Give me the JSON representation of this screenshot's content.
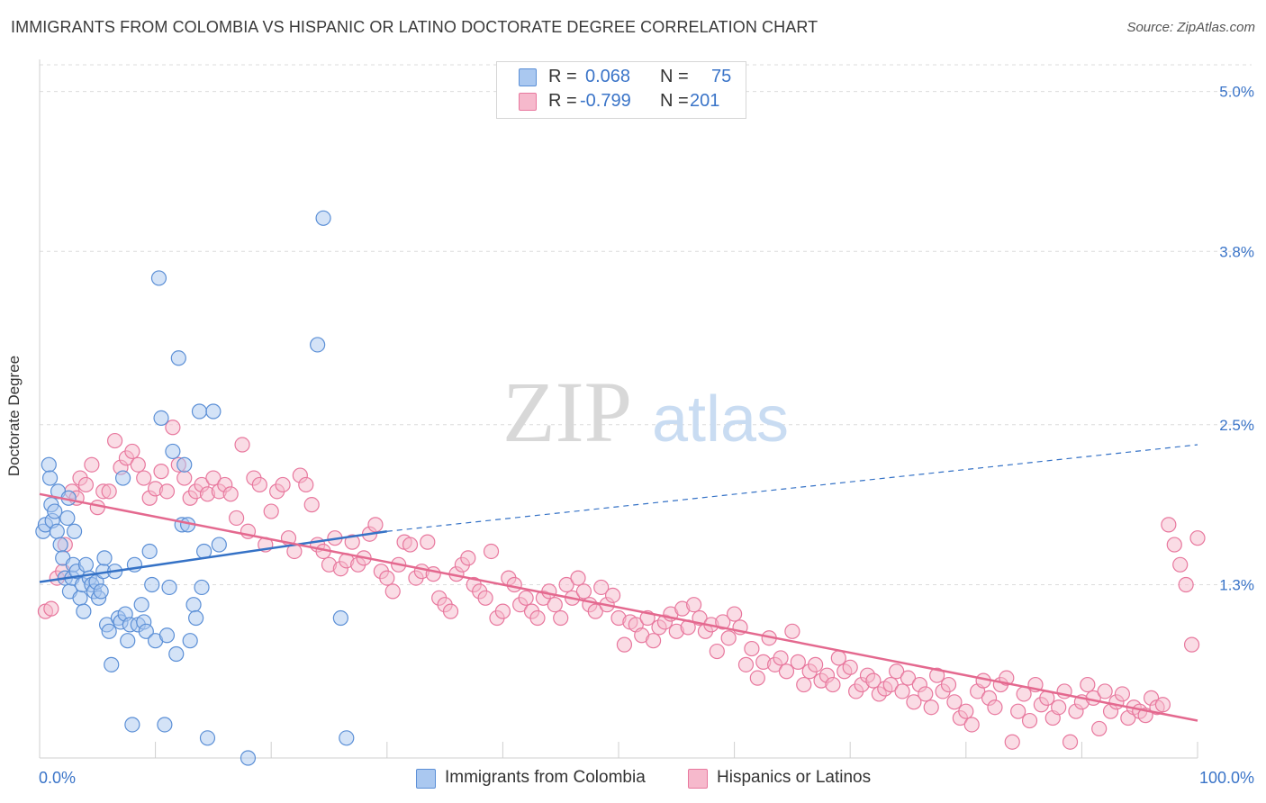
{
  "title": "IMMIGRANTS FROM COLOMBIA VS HISPANIC OR LATINO DOCTORATE DEGREE CORRELATION CHART",
  "source": "Source: ZipAtlas.com",
  "watermark": {
    "zip": "ZIP",
    "atlas": "atlas"
  },
  "legend": {
    "r_label": "R =",
    "n_label": "N =",
    "series1": {
      "r": "0.068",
      "n": "75"
    },
    "series2": {
      "r": "-0.799",
      "n": "201"
    }
  },
  "bottom_legend": {
    "series1": "Immigrants from Colombia",
    "series2": "Hispanics or Latinos"
  },
  "colors": {
    "blue_fill": "#aac8f0",
    "blue_stroke": "#5b8fd6",
    "blue_line": "#3572c6",
    "pink_fill": "#f6b9cc",
    "pink_stroke": "#e8789e",
    "pink_line": "#e4698f",
    "tick_text": "#3a74c8"
  },
  "chart_data": {
    "type": "scatter",
    "title": "IMMIGRANTS FROM COLOMBIA VS HISPANIC OR LATINO DOCTORATE DEGREE CORRELATION CHART",
    "xlabel": "",
    "ylabel": "Doctorate Degree",
    "xlim": [
      0,
      100
    ],
    "ylim": [
      0,
      5.2
    ],
    "x_tick_labels": [
      "0.0%",
      "100.0%"
    ],
    "y_ticks": [
      1.3,
      2.5,
      3.8,
      5.0
    ],
    "y_tick_labels": [
      "1.3%",
      "2.5%",
      "3.8%",
      "5.0%"
    ],
    "series": [
      {
        "name": "Immigrants from Colombia",
        "r": 0.068,
        "n": 75,
        "trend": {
          "x0": 0,
          "y0": 1.32,
          "x1": 30,
          "y1": 1.7,
          "dashed_to_x": 100,
          "dashed_to_y": 2.35
        },
        "points": [
          [
            0.3,
            1.7
          ],
          [
            0.5,
            1.75
          ],
          [
            0.8,
            2.2
          ],
          [
            0.9,
            2.1
          ],
          [
            1.0,
            1.9
          ],
          [
            1.1,
            1.78
          ],
          [
            1.3,
            1.85
          ],
          [
            1.5,
            1.7
          ],
          [
            1.6,
            2.0
          ],
          [
            1.8,
            1.6
          ],
          [
            2.0,
            1.5
          ],
          [
            2.2,
            1.35
          ],
          [
            2.4,
            1.8
          ],
          [
            2.5,
            1.95
          ],
          [
            2.6,
            1.25
          ],
          [
            2.8,
            1.35
          ],
          [
            2.9,
            1.45
          ],
          [
            3.0,
            1.7
          ],
          [
            3.2,
            1.4
          ],
          [
            3.5,
            1.2
          ],
          [
            3.7,
            1.3
          ],
          [
            3.8,
            1.1
          ],
          [
            4.0,
            1.45
          ],
          [
            4.3,
            1.35
          ],
          [
            4.5,
            1.3
          ],
          [
            4.7,
            1.25
          ],
          [
            4.9,
            1.32
          ],
          [
            5.1,
            1.2
          ],
          [
            5.3,
            1.25
          ],
          [
            5.5,
            1.4
          ],
          [
            5.6,
            1.5
          ],
          [
            5.8,
            1.0
          ],
          [
            6.0,
            0.95
          ],
          [
            6.2,
            0.7
          ],
          [
            6.5,
            1.4
          ],
          [
            6.8,
            1.05
          ],
          [
            7.0,
            1.02
          ],
          [
            7.2,
            2.1
          ],
          [
            7.4,
            1.08
          ],
          [
            7.6,
            0.88
          ],
          [
            7.8,
            1.0
          ],
          [
            8.0,
            0.25
          ],
          [
            8.2,
            1.45
          ],
          [
            8.5,
            1.0
          ],
          [
            8.8,
            1.15
          ],
          [
            9.0,
            1.02
          ],
          [
            9.2,
            0.95
          ],
          [
            9.5,
            1.55
          ],
          [
            9.7,
            1.3
          ],
          [
            10.0,
            0.88
          ],
          [
            10.3,
            3.6
          ],
          [
            10.5,
            2.55
          ],
          [
            10.8,
            0.25
          ],
          [
            11.0,
            0.92
          ],
          [
            11.2,
            1.28
          ],
          [
            11.5,
            2.3
          ],
          [
            11.8,
            0.78
          ],
          [
            12.0,
            3.0
          ],
          [
            12.3,
            1.75
          ],
          [
            12.5,
            2.2
          ],
          [
            12.8,
            1.75
          ],
          [
            13.0,
            0.88
          ],
          [
            13.3,
            1.15
          ],
          [
            13.5,
            1.05
          ],
          [
            13.8,
            2.6
          ],
          [
            14.0,
            1.28
          ],
          [
            14.2,
            1.55
          ],
          [
            14.5,
            0.15
          ],
          [
            15.0,
            2.6
          ],
          [
            15.5,
            1.6
          ],
          [
            18.0,
            0.0
          ],
          [
            24.0,
            3.1
          ],
          [
            24.5,
            4.05
          ],
          [
            26.0,
            1.05
          ],
          [
            26.5,
            0.15
          ]
        ]
      },
      {
        "name": "Hispanics or Latinos",
        "r": -0.799,
        "n": 201,
        "trend": {
          "x0": 0,
          "y0": 1.98,
          "x1": 100,
          "y1": 0.28
        },
        "points": [
          [
            0.5,
            1.1
          ],
          [
            1.0,
            1.12
          ],
          [
            1.5,
            1.35
          ],
          [
            2.0,
            1.4
          ],
          [
            2.2,
            1.6
          ],
          [
            2.8,
            2.0
          ],
          [
            3.2,
            1.95
          ],
          [
            3.5,
            2.1
          ],
          [
            4.0,
            2.05
          ],
          [
            4.5,
            2.2
          ],
          [
            5.0,
            1.88
          ],
          [
            5.5,
            2.0
          ],
          [
            6.0,
            2.0
          ],
          [
            6.5,
            2.38
          ],
          [
            7.0,
            2.18
          ],
          [
            7.5,
            2.25
          ],
          [
            8.0,
            2.3
          ],
          [
            8.5,
            2.2
          ],
          [
            9.0,
            2.1
          ],
          [
            9.5,
            1.95
          ],
          [
            10.0,
            2.02
          ],
          [
            10.5,
            2.15
          ],
          [
            11.0,
            2.0
          ],
          [
            11.5,
            2.48
          ],
          [
            12.0,
            2.2
          ],
          [
            12.5,
            2.1
          ],
          [
            13.0,
            1.95
          ],
          [
            13.5,
            2.0
          ],
          [
            14.0,
            2.05
          ],
          [
            14.5,
            1.98
          ],
          [
            15.0,
            2.1
          ],
          [
            15.5,
            2.0
          ],
          [
            16.0,
            2.05
          ],
          [
            16.5,
            1.98
          ],
          [
            17.0,
            1.8
          ],
          [
            17.5,
            2.35
          ],
          [
            18.0,
            1.7
          ],
          [
            18.5,
            2.1
          ],
          [
            19.0,
            2.05
          ],
          [
            19.5,
            1.6
          ],
          [
            20.0,
            1.85
          ],
          [
            20.5,
            2.0
          ],
          [
            21.0,
            2.05
          ],
          [
            21.5,
            1.65
          ],
          [
            22.0,
            1.55
          ],
          [
            22.5,
            2.12
          ],
          [
            23.0,
            2.05
          ],
          [
            23.5,
            1.9
          ],
          [
            24.0,
            1.6
          ],
          [
            24.5,
            1.55
          ],
          [
            25.0,
            1.45
          ],
          [
            25.5,
            1.65
          ],
          [
            26.0,
            1.42
          ],
          [
            26.5,
            1.48
          ],
          [
            27.0,
            1.62
          ],
          [
            27.5,
            1.45
          ],
          [
            28.0,
            1.5
          ],
          [
            28.5,
            1.68
          ],
          [
            29.0,
            1.75
          ],
          [
            29.5,
            1.4
          ],
          [
            30.0,
            1.35
          ],
          [
            30.5,
            1.25
          ],
          [
            31.0,
            1.45
          ],
          [
            31.5,
            1.62
          ],
          [
            32.0,
            1.6
          ],
          [
            32.5,
            1.35
          ],
          [
            33.0,
            1.4
          ],
          [
            33.5,
            1.62
          ],
          [
            34.0,
            1.38
          ],
          [
            34.5,
            1.2
          ],
          [
            35.0,
            1.15
          ],
          [
            35.5,
            1.1
          ],
          [
            36.0,
            1.38
          ],
          [
            36.5,
            1.45
          ],
          [
            37.0,
            1.5
          ],
          [
            37.5,
            1.3
          ],
          [
            38.0,
            1.25
          ],
          [
            38.5,
            1.2
          ],
          [
            39.0,
            1.55
          ],
          [
            39.5,
            1.05
          ],
          [
            40.0,
            1.1
          ],
          [
            40.5,
            1.35
          ],
          [
            41.0,
            1.3
          ],
          [
            41.5,
            1.15
          ],
          [
            42.0,
            1.2
          ],
          [
            42.5,
            1.1
          ],
          [
            43.0,
            1.05
          ],
          [
            43.5,
            1.2
          ],
          [
            44.0,
            1.25
          ],
          [
            44.5,
            1.15
          ],
          [
            45.0,
            1.05
          ],
          [
            45.5,
            1.3
          ],
          [
            46.0,
            1.2
          ],
          [
            46.5,
            1.35
          ],
          [
            47.0,
            1.25
          ],
          [
            47.5,
            1.15
          ],
          [
            48.0,
            1.1
          ],
          [
            48.5,
            1.28
          ],
          [
            49.0,
            1.15
          ],
          [
            49.5,
            1.22
          ],
          [
            50.0,
            1.05
          ],
          [
            50.5,
            0.85
          ],
          [
            51.0,
            1.02
          ],
          [
            51.5,
            1.0
          ],
          [
            52.0,
            0.92
          ],
          [
            52.5,
            1.05
          ],
          [
            53.0,
            0.88
          ],
          [
            53.5,
            0.98
          ],
          [
            54.0,
            1.02
          ],
          [
            54.5,
            1.08
          ],
          [
            55.0,
            0.95
          ],
          [
            55.5,
            1.12
          ],
          [
            56.0,
            0.98
          ],
          [
            56.5,
            1.15
          ],
          [
            57.0,
            1.05
          ],
          [
            57.5,
            0.95
          ],
          [
            58.0,
            1.0
          ],
          [
            58.5,
            0.8
          ],
          [
            59.0,
            1.02
          ],
          [
            59.5,
            0.9
          ],
          [
            60.0,
            1.08
          ],
          [
            60.5,
            0.98
          ],
          [
            61.0,
            0.7
          ],
          [
            61.5,
            0.82
          ],
          [
            62.0,
            0.6
          ],
          [
            62.5,
            0.72
          ],
          [
            63.0,
            0.9
          ],
          [
            63.5,
            0.7
          ],
          [
            64.0,
            0.75
          ],
          [
            64.5,
            0.65
          ],
          [
            65.0,
            0.95
          ],
          [
            65.5,
            0.72
          ],
          [
            66.0,
            0.55
          ],
          [
            66.5,
            0.65
          ],
          [
            67.0,
            0.7
          ],
          [
            67.5,
            0.58
          ],
          [
            68.0,
            0.62
          ],
          [
            68.5,
            0.55
          ],
          [
            69.0,
            0.75
          ],
          [
            69.5,
            0.65
          ],
          [
            70.0,
            0.68
          ],
          [
            70.5,
            0.5
          ],
          [
            71.0,
            0.55
          ],
          [
            71.5,
            0.62
          ],
          [
            72.0,
            0.58
          ],
          [
            72.5,
            0.48
          ],
          [
            73.0,
            0.52
          ],
          [
            73.5,
            0.55
          ],
          [
            74.0,
            0.65
          ],
          [
            74.5,
            0.5
          ],
          [
            75.0,
            0.6
          ],
          [
            75.5,
            0.42
          ],
          [
            76.0,
            0.55
          ],
          [
            76.5,
            0.48
          ],
          [
            77.0,
            0.38
          ],
          [
            77.5,
            0.62
          ],
          [
            78.0,
            0.5
          ],
          [
            78.5,
            0.55
          ],
          [
            79.0,
            0.42
          ],
          [
            79.5,
            0.3
          ],
          [
            80.0,
            0.35
          ],
          [
            80.5,
            0.25
          ],
          [
            81.0,
            0.5
          ],
          [
            81.5,
            0.58
          ],
          [
            82.0,
            0.45
          ],
          [
            82.5,
            0.38
          ],
          [
            83.0,
            0.55
          ],
          [
            83.5,
            0.6
          ],
          [
            84.0,
            0.12
          ],
          [
            84.5,
            0.35
          ],
          [
            85.0,
            0.48
          ],
          [
            85.5,
            0.28
          ],
          [
            86.0,
            0.55
          ],
          [
            86.5,
            0.4
          ],
          [
            87.0,
            0.45
          ],
          [
            87.5,
            0.3
          ],
          [
            88.0,
            0.38
          ],
          [
            88.5,
            0.5
          ],
          [
            89.0,
            0.12
          ],
          [
            89.5,
            0.35
          ],
          [
            90.0,
            0.42
          ],
          [
            90.5,
            0.55
          ],
          [
            91.0,
            0.45
          ],
          [
            91.5,
            0.22
          ],
          [
            92.0,
            0.5
          ],
          [
            92.5,
            0.35
          ],
          [
            93.0,
            0.42
          ],
          [
            93.5,
            0.48
          ],
          [
            94.0,
            0.3
          ],
          [
            94.5,
            0.38
          ],
          [
            95.0,
            0.35
          ],
          [
            95.5,
            0.32
          ],
          [
            96.0,
            0.45
          ],
          [
            96.5,
            0.38
          ],
          [
            97.0,
            0.4
          ],
          [
            97.5,
            1.75
          ],
          [
            98.0,
            1.6
          ],
          [
            98.5,
            1.45
          ],
          [
            99.0,
            1.3
          ],
          [
            99.5,
            0.85
          ],
          [
            100.0,
            1.65
          ]
        ]
      }
    ]
  }
}
